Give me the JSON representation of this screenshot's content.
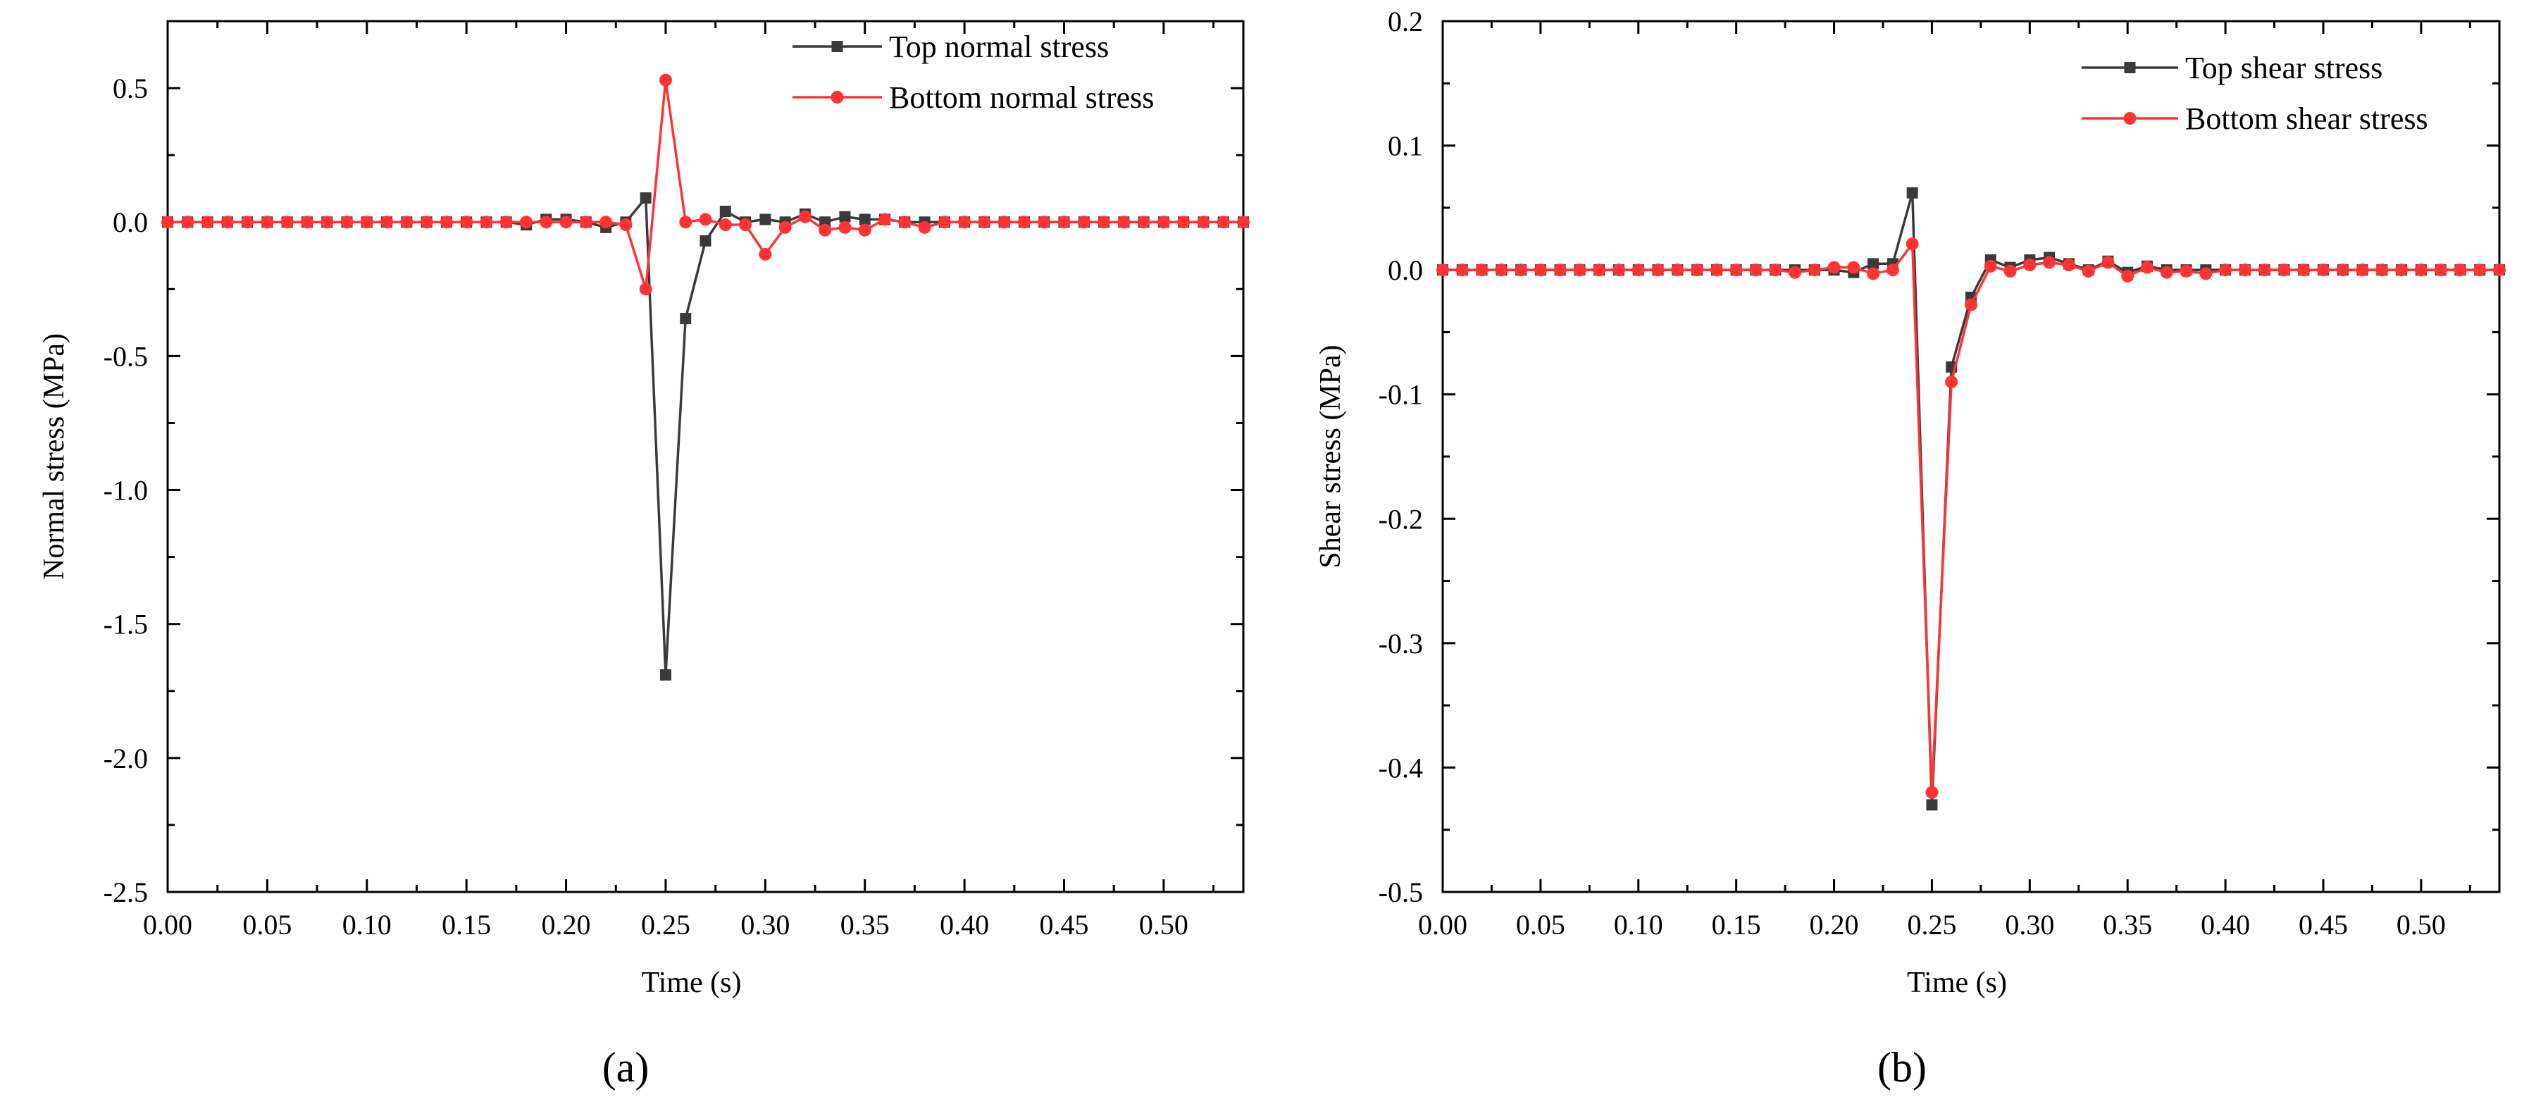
{
  "chart_data": [
    {
      "type": "line",
      "panel_label": "(a)",
      "xlabel": "Time (s)",
      "ylabel": "Normal stress (MPa)",
      "xlim": [
        0,
        0.54
      ],
      "ylim": [
        -2.5,
        0.75
      ],
      "x_ticks": [
        0.0,
        0.05,
        0.1,
        0.15,
        0.2,
        0.25,
        0.3,
        0.35,
        0.4,
        0.45,
        0.5
      ],
      "x_tick_labels": [
        "0.00",
        "0.05",
        "0.10",
        "0.15",
        "0.20",
        "0.25",
        "0.30",
        "0.35",
        "0.40",
        "0.45",
        "0.50"
      ],
      "y_ticks": [
        -2.5,
        -2.0,
        -1.5,
        -1.0,
        -0.5,
        0.0,
        0.5
      ],
      "y_tick_labels": [
        "-2.5",
        "-2.0",
        "-1.5",
        "-1.0",
        "-0.5",
        "0.0",
        "0.5"
      ],
      "legend_position": "top-right",
      "series": [
        {
          "name": "Top normal stress",
          "color": "#3a3a3a",
          "marker": "square",
          "x": [
            0.0,
            0.01,
            0.02,
            0.03,
            0.04,
            0.05,
            0.06,
            0.07,
            0.08,
            0.09,
            0.1,
            0.11,
            0.12,
            0.13,
            0.14,
            0.15,
            0.16,
            0.17,
            0.18,
            0.19,
            0.2,
            0.21,
            0.22,
            0.23,
            0.24,
            0.25,
            0.26,
            0.27,
            0.28,
            0.29,
            0.3,
            0.31,
            0.32,
            0.33,
            0.34,
            0.35,
            0.36,
            0.37,
            0.38,
            0.39,
            0.4,
            0.41,
            0.42,
            0.43,
            0.44,
            0.45,
            0.46,
            0.47,
            0.48,
            0.49,
            0.5,
            0.51,
            0.52,
            0.53,
            0.54
          ],
          "y": [
            0,
            0,
            0,
            0,
            0,
            0,
            0,
            0,
            0,
            0,
            0,
            0,
            0,
            0,
            0,
            0,
            0,
            0,
            -0.01,
            0.01,
            0.01,
            0,
            -0.02,
            0,
            0.09,
            -1.69,
            -0.36,
            -0.07,
            0.04,
            0,
            0.01,
            0,
            0.03,
            0,
            0.02,
            0.01,
            0.01,
            0,
            0,
            0,
            0,
            0,
            0,
            0,
            0,
            0,
            0,
            0,
            0,
            0,
            0,
            0,
            0,
            0,
            0
          ]
        },
        {
          "name": "Bottom normal stress",
          "color": "#ff3333",
          "marker": "circle",
          "x": [
            0.0,
            0.01,
            0.02,
            0.03,
            0.04,
            0.05,
            0.06,
            0.07,
            0.08,
            0.09,
            0.1,
            0.11,
            0.12,
            0.13,
            0.14,
            0.15,
            0.16,
            0.17,
            0.18,
            0.19,
            0.2,
            0.21,
            0.22,
            0.23,
            0.24,
            0.25,
            0.26,
            0.27,
            0.28,
            0.29,
            0.3,
            0.31,
            0.32,
            0.33,
            0.34,
            0.35,
            0.36,
            0.37,
            0.38,
            0.39,
            0.4,
            0.41,
            0.42,
            0.43,
            0.44,
            0.45,
            0.46,
            0.47,
            0.48,
            0.49,
            0.5,
            0.51,
            0.52,
            0.53,
            0.54
          ],
          "y": [
            0,
            0,
            0,
            0,
            0,
            0,
            0,
            0,
            0,
            0,
            0,
            0,
            0,
            0,
            0,
            0,
            0,
            0,
            0,
            0,
            0,
            0,
            0,
            -0.01,
            -0.25,
            0.53,
            0,
            0.01,
            -0.01,
            -0.01,
            -0.12,
            -0.02,
            0.02,
            -0.03,
            -0.02,
            -0.03,
            0.01,
            0,
            -0.02,
            0,
            0,
            0,
            0,
            0,
            0,
            0,
            0,
            0,
            0,
            0,
            0,
            0,
            0,
            0,
            0
          ]
        }
      ]
    },
    {
      "type": "line",
      "panel_label": "(b)",
      "xlabel": "Time (s)",
      "ylabel": "Shear stress (MPa)",
      "xlim": [
        0,
        0.54
      ],
      "ylim": [
        -0.5,
        0.2
      ],
      "x_ticks": [
        0.0,
        0.05,
        0.1,
        0.15,
        0.2,
        0.25,
        0.3,
        0.35,
        0.4,
        0.45,
        0.5
      ],
      "x_tick_labels": [
        "0.00",
        "0.05",
        "0.10",
        "0.15",
        "0.20",
        "0.25",
        "0.30",
        "0.35",
        "0.40",
        "0.45",
        "0.50"
      ],
      "y_ticks": [
        -0.5,
        -0.4,
        -0.3,
        -0.2,
        -0.1,
        0.0,
        0.1,
        0.2
      ],
      "y_tick_labels": [
        "-0.5",
        "-0.4",
        "-0.3",
        "-0.2",
        "-0.1",
        "0.0",
        "0.1",
        "0.2"
      ],
      "legend_position": "top-right",
      "series": [
        {
          "name": "Top shear stress",
          "color": "#3a3a3a",
          "marker": "square",
          "x": [
            0.0,
            0.01,
            0.02,
            0.03,
            0.04,
            0.05,
            0.06,
            0.07,
            0.08,
            0.09,
            0.1,
            0.11,
            0.12,
            0.13,
            0.14,
            0.15,
            0.16,
            0.17,
            0.18,
            0.19,
            0.2,
            0.21,
            0.22,
            0.23,
            0.24,
            0.25,
            0.26,
            0.27,
            0.28,
            0.29,
            0.3,
            0.31,
            0.32,
            0.33,
            0.34,
            0.35,
            0.36,
            0.37,
            0.38,
            0.39,
            0.4,
            0.41,
            0.42,
            0.43,
            0.44,
            0.45,
            0.46,
            0.47,
            0.48,
            0.49,
            0.5,
            0.51,
            0.52,
            0.53,
            0.54
          ],
          "y": [
            0,
            0,
            0,
            0,
            0,
            0,
            0,
            0,
            0,
            0,
            0,
            0,
            0,
            0,
            0,
            0,
            0,
            0,
            0,
            0,
            0,
            -0.002,
            0.005,
            0.005,
            0.062,
            -0.43,
            -0.078,
            -0.022,
            0.008,
            0.002,
            0.008,
            0.01,
            0.005,
            0,
            0.007,
            -0.002,
            0.003,
            0,
            0,
            0,
            0,
            0,
            0,
            0,
            0,
            0,
            0,
            0,
            0,
            0,
            0,
            0,
            0,
            0,
            0
          ]
        },
        {
          "name": "Bottom shear stress",
          "color": "#ff3333",
          "marker": "circle",
          "x": [
            0.0,
            0.01,
            0.02,
            0.03,
            0.04,
            0.05,
            0.06,
            0.07,
            0.08,
            0.09,
            0.1,
            0.11,
            0.12,
            0.13,
            0.14,
            0.15,
            0.16,
            0.17,
            0.18,
            0.19,
            0.2,
            0.21,
            0.22,
            0.23,
            0.24,
            0.25,
            0.26,
            0.27,
            0.28,
            0.29,
            0.3,
            0.31,
            0.32,
            0.33,
            0.34,
            0.35,
            0.36,
            0.37,
            0.38,
            0.39,
            0.4,
            0.41,
            0.42,
            0.43,
            0.44,
            0.45,
            0.46,
            0.47,
            0.48,
            0.49,
            0.5,
            0.51,
            0.52,
            0.53,
            0.54
          ],
          "y": [
            0,
            0,
            0,
            0,
            0,
            0,
            0,
            0,
            0,
            0,
            0,
            0,
            0,
            0,
            0,
            0,
            0,
            0,
            -0.002,
            0,
            0.002,
            0.002,
            -0.003,
            0,
            0.021,
            -0.42,
            -0.09,
            -0.028,
            0.003,
            -0.001,
            0.004,
            0.006,
            0.004,
            -0.001,
            0.006,
            -0.005,
            0.002,
            -0.002,
            -0.001,
            -0.003,
            0,
            0,
            0,
            0,
            0,
            0,
            0,
            0,
            0,
            0,
            0,
            0,
            0,
            0,
            0
          ]
        }
      ]
    }
  ]
}
